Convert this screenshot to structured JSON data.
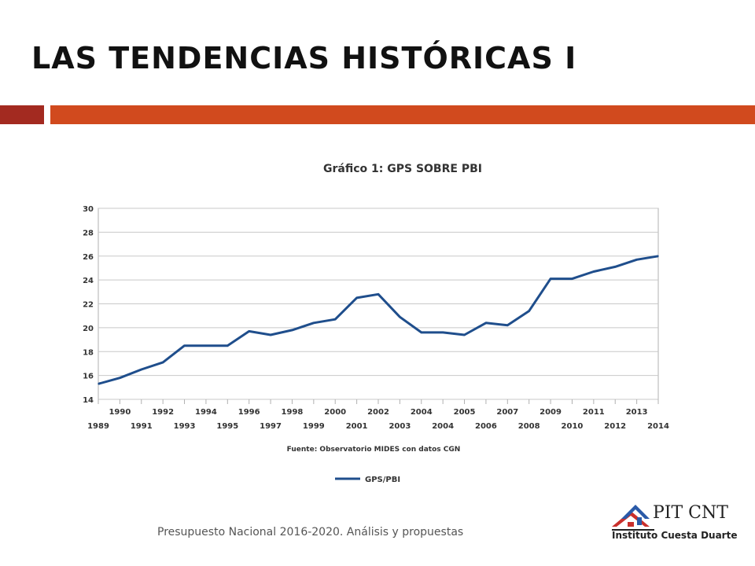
{
  "slide": {
    "title": "LAS TENDENCIAS HISTÓRICAS I",
    "footer": "Presupuesto Nacional  2016-2020. Análisis y propuestas",
    "accent_dark": "#a32a20",
    "accent": "#d14a1e"
  },
  "logo": {
    "brand": "PIT CNT",
    "subtitle": "Instituto Cuesta Duarte"
  },
  "chart_data": {
    "type": "line",
    "title": "Gráfico 1: GPS SOBRE PBI",
    "source_note": "Fuente: Observatorio MIDES con datos CGN",
    "legend_position": "bottom-left",
    "grid": true,
    "ylim": [
      14,
      30
    ],
    "y_ticks": [
      14,
      16,
      18,
      20,
      22,
      24,
      26,
      28,
      30
    ],
    "categories": [
      "1989",
      "1990",
      "1991",
      "1992",
      "1993",
      "1994",
      "1995",
      "1996",
      "1997",
      "1998",
      "1999",
      "2000",
      "2001",
      "2002",
      "2003",
      "2004",
      "2004",
      "2005",
      "2006",
      "2007",
      "2008",
      "2009",
      "2010",
      "2011",
      "2012",
      "2013",
      "2014"
    ],
    "series": [
      {
        "name": "GPS/PBI",
        "color": "#1f4e8c",
        "values": [
          15.3,
          15.8,
          16.5,
          17.1,
          18.5,
          18.5,
          18.5,
          19.7,
          19.4,
          19.8,
          20.4,
          20.7,
          22.5,
          22.8,
          20.9,
          19.6,
          19.6,
          19.4,
          20.4,
          20.2,
          21.4,
          24.1,
          24.1,
          24.7,
          25.1,
          25.7,
          26.0
        ]
      }
    ]
  }
}
